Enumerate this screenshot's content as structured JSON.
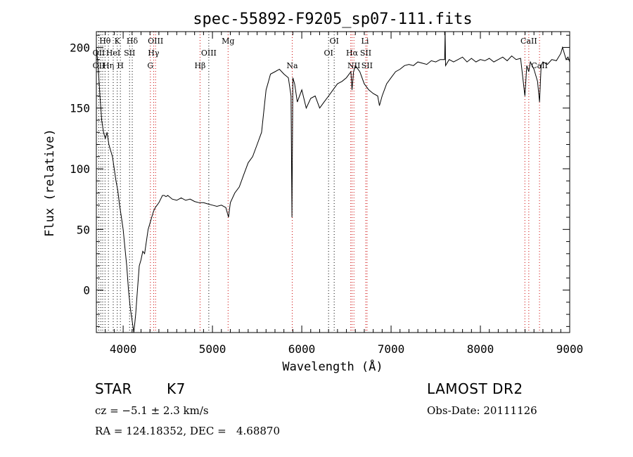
{
  "chart_data": {
    "type": "line",
    "title": "spec-55892-F9205_sp07-111.fits",
    "xlabel": "Wavelength (Å)",
    "ylabel": "Flux (relative)",
    "xlim": [
      3700,
      9000
    ],
    "ylim": [
      -35,
      213
    ],
    "xticks": [
      4000,
      5000,
      6000,
      7000,
      8000,
      9000
    ],
    "yticks": [
      0,
      50,
      100,
      150,
      200
    ],
    "grid": false,
    "series": [
      {
        "x": [
          3700,
          3720,
          3740,
          3760,
          3780,
          3800,
          3820,
          3840,
          3860,
          3880,
          3900,
          3920,
          3940,
          3960,
          3980,
          4000,
          4020,
          4040,
          4060,
          4080,
          4100,
          4120,
          4140,
          4160,
          4180,
          4200,
          4220,
          4240,
          4260,
          4280,
          4300,
          4320,
          4340,
          4360,
          4380,
          4400,
          4420,
          4440,
          4460,
          4480,
          4500,
          4550,
          4600,
          4650,
          4700,
          4750,
          4800,
          4850,
          4900,
          4950,
          5000,
          5050,
          5100,
          5150,
          5180,
          5200,
          5250,
          5300,
          5350,
          5400,
          5450,
          5500,
          5550,
          5600,
          5620,
          5650,
          5700,
          5750,
          5800,
          5850,
          5880,
          5890,
          5900,
          5920,
          5950,
          6000,
          6050,
          6100,
          6150,
          6200,
          6250,
          6300,
          6350,
          6400,
          6450,
          6500,
          6550,
          6563,
          6580,
          6600,
          6650,
          6700,
          6750,
          6800,
          6850,
          6870,
          6900,
          6950,
          7000,
          7050,
          7100,
          7150,
          7200,
          7250,
          7300,
          7350,
          7400,
          7450,
          7500,
          7550,
          7600,
          7605,
          7610,
          7650,
          7700,
          7750,
          7800,
          7850,
          7900,
          7950,
          8000,
          8050,
          8100,
          8150,
          8200,
          8250,
          8300,
          8350,
          8400,
          8450,
          8498,
          8520,
          8542,
          8560,
          8600,
          8640,
          8662,
          8680,
          8700,
          8750,
          8800,
          8850,
          8900,
          8920,
          8940,
          8960,
          8980,
          9000
        ],
        "y": [
          200,
          185,
          160,
          140,
          130,
          125,
          130,
          120,
          115,
          110,
          100,
          90,
          82,
          70,
          60,
          50,
          35,
          20,
          0,
          -15,
          -25,
          -35,
          -20,
          0,
          20,
          25,
          32,
          30,
          40,
          50,
          55,
          60,
          65,
          68,
          70,
          72,
          75,
          78,
          78,
          77,
          78,
          75,
          74,
          76,
          74,
          75,
          73,
          72,
          72,
          71,
          70,
          69,
          70,
          68,
          60,
          72,
          80,
          85,
          95,
          105,
          110,
          120,
          130,
          165,
          170,
          178,
          180,
          182,
          178,
          175,
          160,
          60,
          175,
          170,
          155,
          165,
          150,
          158,
          160,
          150,
          155,
          160,
          165,
          170,
          172,
          175,
          180,
          165,
          180,
          185,
          180,
          170,
          165,
          162,
          160,
          152,
          160,
          170,
          175,
          180,
          182,
          185,
          186,
          185,
          188,
          187,
          186,
          189,
          188,
          190,
          190,
          215,
          185,
          190,
          188,
          190,
          192,
          188,
          191,
          188,
          190,
          189,
          191,
          188,
          190,
          192,
          189,
          193,
          190,
          191,
          160,
          185,
          180,
          188,
          182,
          172,
          155,
          185,
          188,
          186,
          190,
          189,
          195,
          200,
          195,
          190,
          192,
          188
        ]
      }
    ],
    "line_annotations": [
      {
        "label": "Hθ",
        "wavelength": 3797,
        "row": 0,
        "color": "#000000"
      },
      {
        "label": "OII",
        "wavelength": 3727,
        "row": 1,
        "color": "#000000"
      },
      {
        "label": "OII",
        "wavelength": 3727,
        "row": 2,
        "color": "#000000"
      },
      {
        "label": "Hη",
        "wavelength": 3835,
        "row": 2,
        "color": "#000000"
      },
      {
        "label": "K",
        "wavelength": 3934,
        "row": 0,
        "color": "#000000"
      },
      {
        "label": "HeI",
        "wavelength": 3889,
        "row": 1,
        "color": "#000000"
      },
      {
        "label": "SII",
        "wavelength": 4072,
        "row": 1,
        "color": "#000000"
      },
      {
        "label": "H",
        "wavelength": 3969,
        "row": 2,
        "color": "#000000"
      },
      {
        "label": "Hδ",
        "wavelength": 4102,
        "row": 0,
        "color": "#000000"
      },
      {
        "label": "OIII",
        "wavelength": 4363,
        "row": 0,
        "color": "#000000"
      },
      {
        "label": "Hγ",
        "wavelength": 4341,
        "row": 1,
        "color": "#000000"
      },
      {
        "label": "G",
        "wavelength": 4305,
        "row": 2,
        "color": "#000000"
      },
      {
        "label": "OIII",
        "wavelength": 4959,
        "row": 1,
        "color": "#000000"
      },
      {
        "label": "Hβ",
        "wavelength": 4861,
        "row": 2,
        "color": "#000000"
      },
      {
        "label": "Mg",
        "wavelength": 5175,
        "row": 0,
        "color": "#000000"
      },
      {
        "label": "Na",
        "wavelength": 5893,
        "row": 2,
        "color": "#000000"
      },
      {
        "label": "OI",
        "wavelength": 6363,
        "row": 0,
        "color": "#000000"
      },
      {
        "label": "OI",
        "wavelength": 6300,
        "row": 1,
        "color": "#000000"
      },
      {
        "label": "Li",
        "wavelength": 6708,
        "row": 0,
        "color": "#000000"
      },
      {
        "label": "Hα",
        "wavelength": 6563,
        "row": 1,
        "color": "#000000"
      },
      {
        "label": "SII",
        "wavelength": 6716,
        "row": 1,
        "color": "#000000"
      },
      {
        "label": "NII",
        "wavelength": 6584,
        "row": 2,
        "color": "#000000"
      },
      {
        "label": "SII",
        "wavelength": 6731,
        "row": 2,
        "color": "#000000"
      },
      {
        "label": "CaII",
        "wavelength": 8542,
        "row": 0,
        "color": "#000000"
      },
      {
        "label": "CaII",
        "wavelength": 8662,
        "row": 2,
        "color": "#000000"
      }
    ],
    "marker_lines": [
      {
        "wavelength": 3727,
        "color": "#000000"
      },
      {
        "wavelength": 3750,
        "color": "#000000"
      },
      {
        "wavelength": 3771,
        "color": "#000000"
      },
      {
        "wavelength": 3797,
        "color": "#000000"
      },
      {
        "wavelength": 3835,
        "color": "#000000"
      },
      {
        "wavelength": 3889,
        "color": "#000000"
      },
      {
        "wavelength": 3934,
        "color": "#000000"
      },
      {
        "wavelength": 3969,
        "color": "#000000"
      },
      {
        "wavelength": 4072,
        "color": "#000000"
      },
      {
        "wavelength": 4102,
        "color": "#000000"
      },
      {
        "wavelength": 4305,
        "color": "#cc0000"
      },
      {
        "wavelength": 4341,
        "color": "#cc0000"
      },
      {
        "wavelength": 4363,
        "color": "#cc0000"
      },
      {
        "wavelength": 4861,
        "color": "#cc0000"
      },
      {
        "wavelength": 4959,
        "color": "#000000"
      },
      {
        "wavelength": 5175,
        "color": "#cc0000"
      },
      {
        "wavelength": 5893,
        "color": "#cc0000"
      },
      {
        "wavelength": 6300,
        "color": "#000000"
      },
      {
        "wavelength": 6363,
        "color": "#000000"
      },
      {
        "wavelength": 6548,
        "color": "#cc0000"
      },
      {
        "wavelength": 6563,
        "color": "#cc0000"
      },
      {
        "wavelength": 6584,
        "color": "#cc0000"
      },
      {
        "wavelength": 6716,
        "color": "#cc0000"
      },
      {
        "wavelength": 6731,
        "color": "#cc0000"
      },
      {
        "wavelength": 8498,
        "color": "#cc0000"
      },
      {
        "wavelength": 8542,
        "color": "#cc0000"
      },
      {
        "wavelength": 8662,
        "color": "#cc0000"
      }
    ]
  },
  "info": {
    "object_class": "STAR",
    "subclass": "K7",
    "survey": "LAMOST DR2",
    "redshift": "cz = −5.1 ± 2.3 km/s",
    "obs_date": "Obs-Date: 20111126",
    "coords": "RA = 124.18352, DEC =   4.68870"
  }
}
